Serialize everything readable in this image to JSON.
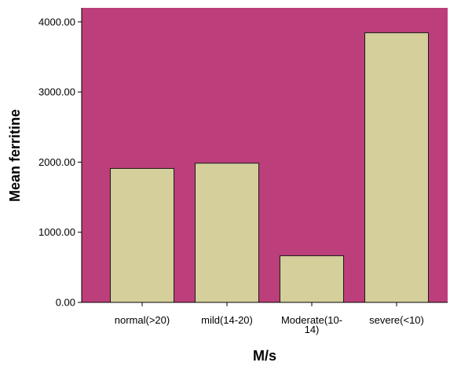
{
  "chart_data": {
    "type": "bar",
    "title": "",
    "xlabel": "M/s",
    "ylabel": "Mean ferritine",
    "categories": [
      [
        "normal(>20)"
      ],
      [
        "mild(14-20)"
      ],
      [
        "Moderate(10-",
        "14)"
      ],
      [
        "severe(<10)"
      ]
    ],
    "values": [
      1910,
      1985,
      665,
      3845
    ],
    "ylim": [
      0,
      4200
    ],
    "yticks": [
      0,
      1000,
      2000,
      3000,
      4000
    ],
    "ytick_labels": [
      "0.00",
      "1000.00",
      "2000.00",
      "3000.00",
      "4000.00"
    ],
    "grid": false,
    "legend": "none",
    "colors": {
      "plot_background": "#BC3F7B",
      "bar_fill": "#D4CF9B",
      "bar_stroke": "#1a1a1a",
      "axis": "#000000"
    }
  }
}
